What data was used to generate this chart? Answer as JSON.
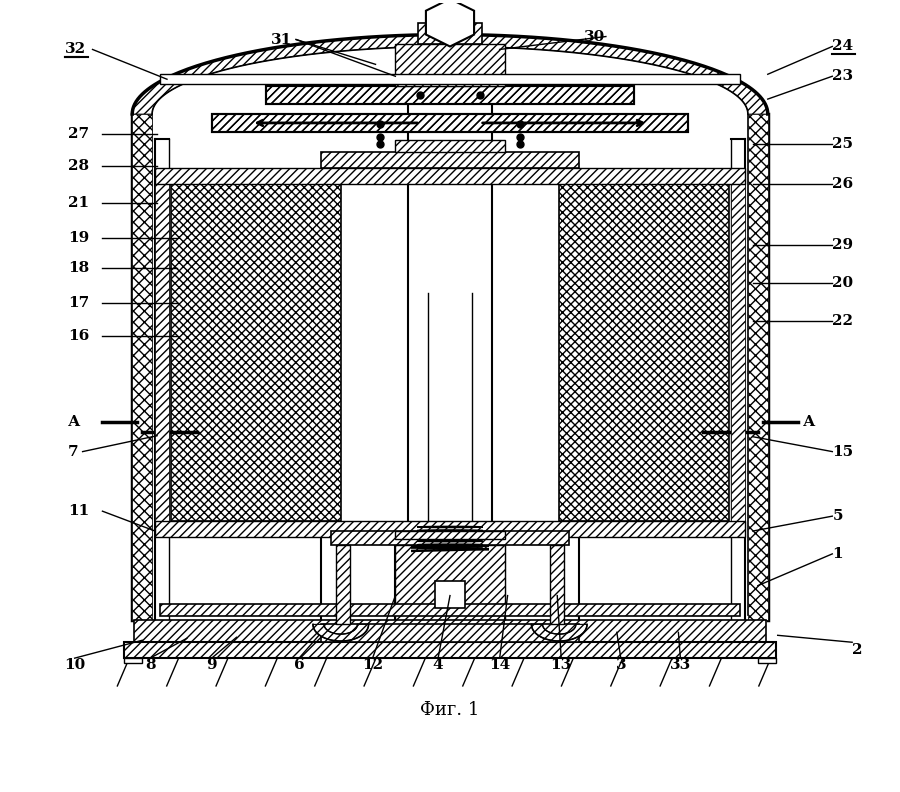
{
  "title": "Фиг. 1",
  "bg_color": "#ffffff",
  "lc": "#000000",
  "fig_width": 9.0,
  "fig_height": 7.92,
  "dpi": 100
}
